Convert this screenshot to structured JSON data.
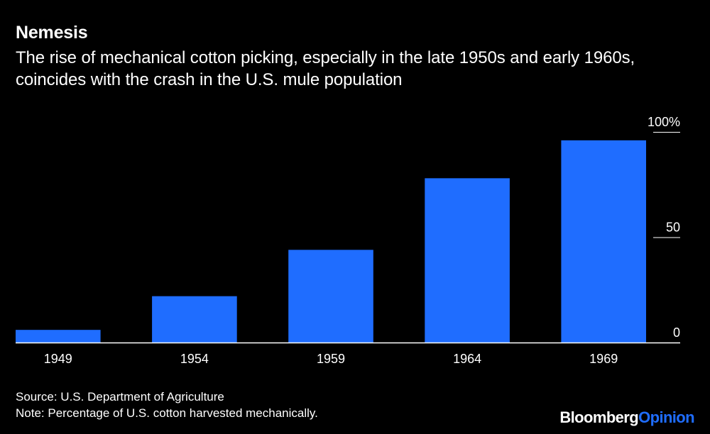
{
  "header": {
    "title": "Nemesis",
    "subtitle": "The rise of mechanical cotton picking, especially in the late 1950s and early 1960s, coincides with the crash in the U.S. mule population"
  },
  "footer": {
    "source": "Source: U.S. Department of Agriculture",
    "note": "Note: Percentage of U.S. cotton harvested mechanically."
  },
  "brand": {
    "part1": "Bloomberg",
    "part2": "Opinion"
  },
  "colors": {
    "background": "#000000",
    "bar": "#1f6dff",
    "text": "#ffffff",
    "accent": "#1f6dff"
  },
  "chart_data": {
    "type": "bar",
    "categories": [
      "1949",
      "1954",
      "1959",
      "1964",
      "1969"
    ],
    "values": [
      6,
      22,
      44,
      78,
      96
    ],
    "title": "Nemesis",
    "xlabel": "",
    "ylabel": "",
    "ylim": [
      0,
      100
    ],
    "yticks": [
      0,
      50,
      100
    ],
    "ytick_labels": [
      "0",
      "50",
      "100%"
    ],
    "grid": false,
    "axis_side": "right"
  }
}
